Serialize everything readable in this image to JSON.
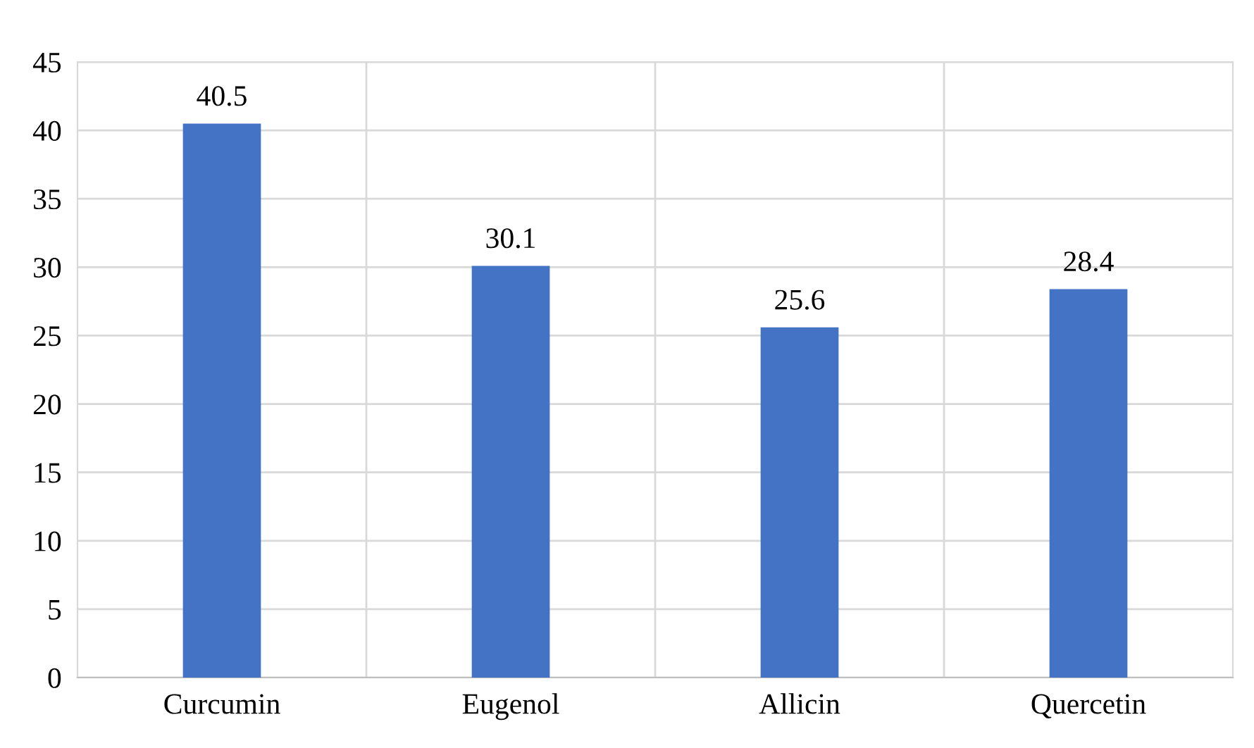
{
  "chart_data": {
    "type": "bar",
    "categories": [
      "Curcumin",
      "Eugenol",
      "Allicin",
      "Quercetin"
    ],
    "values": [
      40.5,
      30.1,
      25.6,
      28.4
    ],
    "color": "#4472c4",
    "ylim": [
      0,
      45
    ],
    "yticks": [
      0,
      5,
      10,
      15,
      20,
      25,
      30,
      35,
      40,
      45
    ],
    "grid": true,
    "data_labels": true
  }
}
